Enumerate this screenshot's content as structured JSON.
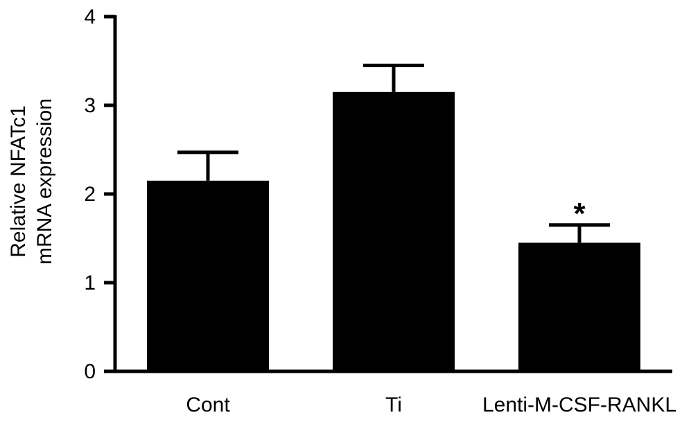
{
  "chart_data": {
    "type": "bar",
    "categories": [
      "Cont",
      "Ti",
      "Lenti-M-CSF-RANKL"
    ],
    "values": [
      2.15,
      3.15,
      1.45
    ],
    "error_upper": [
      2.47,
      3.45,
      1.65
    ],
    "ylabel": [
      "Relative NFATc1",
      "mRNA expression"
    ],
    "xlabel": "",
    "ylim": [
      0,
      4
    ],
    "yticks": [
      "0",
      "1",
      "2",
      "3",
      "4"
    ],
    "annotations": [
      {
        "category": "Lenti-M-CSF-RANKL",
        "text": "*"
      }
    ],
    "grid": false,
    "bar_color": "#000000"
  }
}
